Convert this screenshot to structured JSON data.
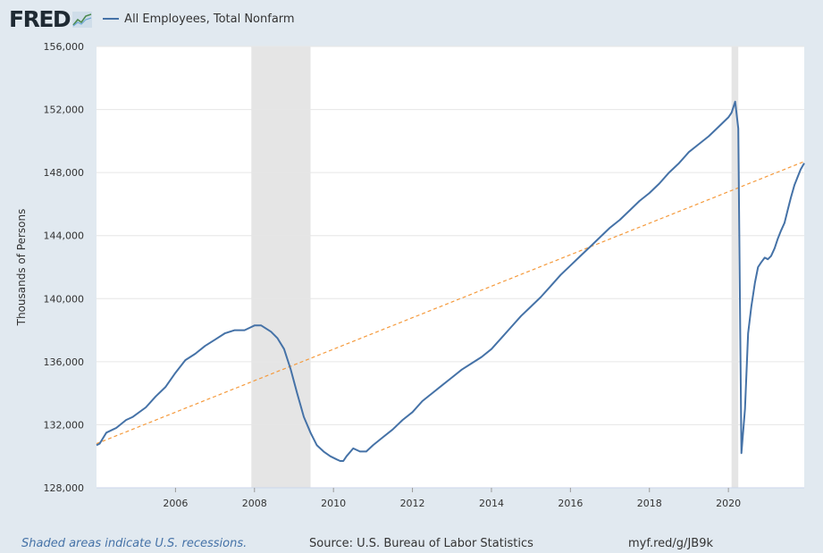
{
  "header": {
    "logo": "FRED",
    "logo_icon": "fred-chart-icon",
    "series_label": "All Employees, Total Nonfarm"
  },
  "footer": {
    "recession_note": "Shaded areas indicate U.S. recessions.",
    "source": "Source: U.S. Bureau of Labor Statistics",
    "url": "myf.red/g/JB9k"
  },
  "colors": {
    "series": "#4572a7",
    "trend": "#f59a3c",
    "recession": "#e5e5e5",
    "background": "#e1e9f0"
  },
  "chart_data": {
    "type": "line",
    "ylabel": "Thousands of Persons",
    "xlim": [
      2004.0,
      2021.92
    ],
    "ylim": [
      128000,
      156000
    ],
    "y_ticks": [
      128000,
      132000,
      136000,
      140000,
      144000,
      148000,
      152000,
      156000
    ],
    "y_tick_labels": [
      "128,000",
      "132,000",
      "136,000",
      "140,000",
      "144,000",
      "148,000",
      "152,000",
      "156,000"
    ],
    "x_ticks": [
      2006,
      2008,
      2010,
      2012,
      2014,
      2016,
      2018,
      2020
    ],
    "x_tick_labels": [
      "2006",
      "2008",
      "2010",
      "2012",
      "2014",
      "2016",
      "2018",
      "2020"
    ],
    "grid": true,
    "recessions": [
      {
        "start": 2007.92,
        "end": 2009.42
      },
      {
        "start": 2020.08,
        "end": 2020.25
      }
    ],
    "series": [
      {
        "name": "All Employees, Total Nonfarm",
        "x": [
          2004.0,
          2004.08,
          2004.25,
          2004.5,
          2004.75,
          2004.92,
          2005.25,
          2005.5,
          2005.75,
          2006.0,
          2006.25,
          2006.5,
          2006.75,
          2007.0,
          2007.25,
          2007.5,
          2007.75,
          2007.92,
          2008.0,
          2008.17,
          2008.42,
          2008.58,
          2008.75,
          2008.92,
          2009.08,
          2009.25,
          2009.42,
          2009.58,
          2009.75,
          2009.92,
          2010.08,
          2010.17,
          2010.25,
          2010.33,
          2010.5,
          2010.67,
          2010.83,
          2011.0,
          2011.25,
          2011.5,
          2011.75,
          2012.0,
          2012.25,
          2012.5,
          2012.75,
          2013.0,
          2013.25,
          2013.5,
          2013.75,
          2014.0,
          2014.25,
          2014.5,
          2014.75,
          2015.0,
          2015.25,
          2015.5,
          2015.75,
          2016.0,
          2016.25,
          2016.5,
          2016.75,
          2017.0,
          2017.25,
          2017.5,
          2017.75,
          2018.0,
          2018.25,
          2018.5,
          2018.75,
          2019.0,
          2019.25,
          2019.5,
          2019.75,
          2020.0,
          2020.08,
          2020.17,
          2020.25,
          2020.33,
          2020.42,
          2020.5,
          2020.58,
          2020.67,
          2020.75,
          2020.83,
          2020.92,
          2021.0,
          2021.08,
          2021.17,
          2021.25,
          2021.33,
          2021.42,
          2021.5,
          2021.58,
          2021.67,
          2021.75,
          2021.83,
          2021.92
        ],
        "values": [
          130700,
          130800,
          131500,
          131800,
          132300,
          132500,
          133100,
          133800,
          134400,
          135300,
          136100,
          136500,
          137000,
          137400,
          137800,
          138000,
          138000,
          138200,
          138300,
          138300,
          137900,
          137500,
          136800,
          135500,
          134000,
          132500,
          131500,
          130700,
          130300,
          130000,
          129800,
          129700,
          129700,
          130000,
          130500,
          130300,
          130300,
          130700,
          131200,
          131700,
          132300,
          132800,
          133500,
          134000,
          134500,
          135000,
          135500,
          135900,
          136300,
          136800,
          137500,
          138200,
          138900,
          139500,
          140100,
          140800,
          141500,
          142100,
          142700,
          143300,
          143900,
          144500,
          145000,
          145600,
          146200,
          146700,
          147300,
          148000,
          148600,
          149300,
          149800,
          150300,
          150900,
          151500,
          151800,
          152500,
          150800,
          130200,
          133000,
          137800,
          139500,
          141000,
          142000,
          142300,
          142600,
          142500,
          142700,
          143200,
          143800,
          144300,
          144800,
          145600,
          146400,
          147200,
          147700,
          148200,
          148600
        ]
      },
      {
        "name": "Trend",
        "x": [
          2004.0,
          2021.92
        ],
        "values": [
          130800,
          148700
        ]
      }
    ]
  }
}
